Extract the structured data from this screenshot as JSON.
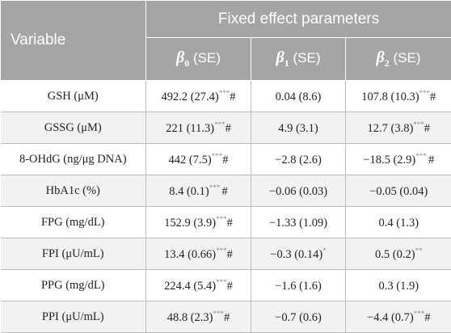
{
  "header": {
    "variable": "Variable",
    "group": "Fixed effect parameters",
    "beta_symbol": "β",
    "se_label": "(SE)",
    "b0_sub": "0",
    "b1_sub": "1",
    "b2_sub": "2"
  },
  "rows": [
    {
      "variable": "GSH (μM)",
      "b0": "492.2 (27.4)",
      "b0_sig": "***",
      "b0_mark": "#",
      "b1": "0.04 (8.6)",
      "b1_sig": "",
      "b2": "107.8 (10.3)",
      "b2_sig": "***",
      "b2_mark": "#"
    },
    {
      "variable": "GSSG (μM)",
      "b0": "221 (11.3)",
      "b0_sig": "***",
      "b0_mark": "#",
      "b1": "4.9 (3.1)",
      "b1_sig": "",
      "b2": "12.7 (3.8)",
      "b2_sig": "***",
      "b2_mark": "#"
    },
    {
      "variable": "8-OHdG (ng/μg DNA)",
      "b0": "442 (7.5)",
      "b0_sig": "***",
      "b0_mark": "#",
      "b1": "−2.8 (2.6)",
      "b1_sig": "",
      "b2": "−18.5 (2.9)",
      "b2_sig": "*** ",
      "b2_mark": "#"
    },
    {
      "variable": "HbA1c (%)",
      "b0": "8.4 (0.1)",
      "b0_sig": "*** ",
      "b0_mark": "#",
      "b1": "−0.06 (0.03)",
      "b1_sig": "",
      "b2": "−0.05 (0.04)",
      "b2_sig": "",
      "b2_mark": ""
    },
    {
      "variable": "FPG (mg/dL)",
      "b0": "152.9 (3.9)",
      "b0_sig": "***",
      "b0_mark": "#",
      "b1": "−1.33 (1.09)",
      "b1_sig": "",
      "b2": "0.4 (1.3)",
      "b2_sig": "",
      "b2_mark": ""
    },
    {
      "variable": "FPI (μU/mL)",
      "b0": "13.4 (0.66)",
      "b0_sig": "***",
      "b0_mark": "#",
      "b1": "−0.3 (0.14)",
      "b1_sig": "*",
      "b2": "0.5 (0.2)",
      "b2_sig": "**",
      "b2_mark": ""
    },
    {
      "variable": "PPG (mg/dL)",
      "b0": "224.4 (5.4)",
      "b0_sig": "***",
      "b0_mark": "#",
      "b1": "−1.6 (1.6)",
      "b1_sig": "",
      "b2": "0.3 (1.9)",
      "b2_sig": "",
      "b2_mark": ""
    },
    {
      "variable": "PPI (μU/mL)",
      "b0": "48.8 (2.3)",
      "b0_sig": "***",
      "b0_mark": "#",
      "b1": "−0.7 (0.6)",
      "b1_sig": "",
      "b2": "−4.4 (0.7)",
      "b2_sig": "***",
      "b2_mark": "#"
    }
  ]
}
